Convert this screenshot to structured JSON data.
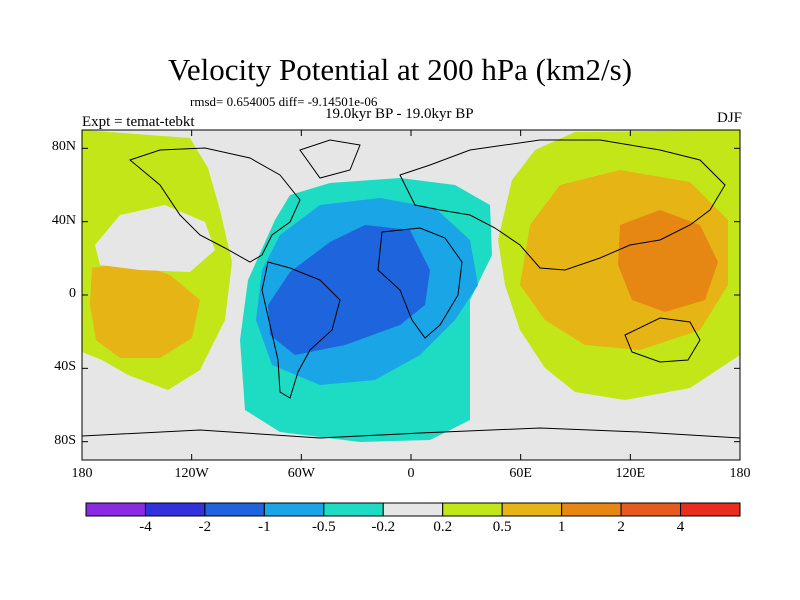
{
  "title": "Velocity Potential at 200 hPa (km2/s)",
  "stats": "rmsd= 0.654005  diff= -9.14501e-06",
  "period": "19.0kyr BP - 19.0kyr BP",
  "experiment": "Expt = temat-tebkt",
  "season": "DJF",
  "map": {
    "lon_range": [
      -180,
      180
    ],
    "lat_range": [
      -90,
      90
    ],
    "x_ticks": [
      {
        "lon": -180,
        "label": "180"
      },
      {
        "lon": -120,
        "label": "120W"
      },
      {
        "lon": -60,
        "label": "60W"
      },
      {
        "lon": 0,
        "label": "0"
      },
      {
        "lon": 60,
        "label": "60E"
      },
      {
        "lon": 120,
        "label": "120E"
      },
      {
        "lon": 180,
        "label": "180"
      }
    ],
    "y_ticks": [
      {
        "lat": 80,
        "label": "80N"
      },
      {
        "lat": 40,
        "label": "40N"
      },
      {
        "lat": 0,
        "label": "0"
      },
      {
        "lat": -40,
        "label": "40S"
      },
      {
        "lat": -80,
        "label": "80S"
      }
    ]
  },
  "colorbar": {
    "colors": [
      "#8a2be2",
      "#3232dc",
      "#1e64dc",
      "#19a5e6",
      "#1edcc3",
      "#e6e6e6",
      "#c3e619",
      "#e6b414",
      "#e68714",
      "#e65a1e",
      "#e62d1e"
    ],
    "labels": [
      "-4",
      "-2",
      "-1",
      "-0.5",
      "-0.2",
      "0.2",
      "0.5",
      "1",
      "2",
      "4"
    ]
  }
}
